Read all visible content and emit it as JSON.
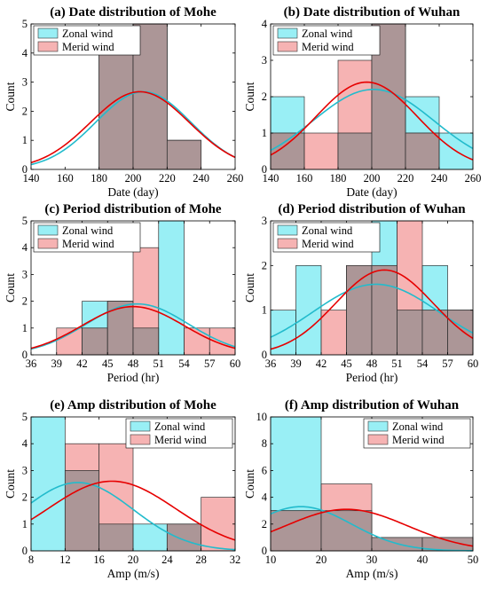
{
  "colors": {
    "zonal_fill": "#00D7E6",
    "merid_fill": "#F08080",
    "zonal_curve": "#22BBCC",
    "merid_curve": "#E60000",
    "overlap_fill": "#A08F8F"
  },
  "chart_data": [
    {
      "type": "bar",
      "title": "(a) Date distribution of Mohe",
      "xlabel": "Date (day)",
      "ylabel": "Count",
      "xlim": [
        140,
        260
      ],
      "ylim": [
        0,
        5
      ],
      "xticks": [
        "140",
        "160",
        "180",
        "200",
        "220",
        "240",
        "260"
      ],
      "yticks": [
        "0",
        "1",
        "2",
        "3",
        "4",
        "5"
      ],
      "bin_edges": [
        140,
        160,
        180,
        200,
        220,
        240,
        260
      ],
      "series": [
        {
          "name": "Zonal wind",
          "values": [
            0,
            0,
            4,
            5,
            1,
            0
          ]
        },
        {
          "name": "Merid wind",
          "values": [
            0,
            0,
            4,
            5,
            1,
            0
          ]
        }
      ],
      "fits": [
        {
          "series": "Zonal wind",
          "mean": 206,
          "peak": 2.67,
          "sigma": 28
        },
        {
          "series": "Merid wind",
          "mean": 204,
          "peak": 2.67,
          "sigma": 29
        }
      ],
      "legend": "top-left"
    },
    {
      "type": "bar",
      "title": "(b) Date distribution of Wuhan",
      "xlabel": "Date (day)",
      "ylabel": "Count",
      "xlim": [
        140,
        260
      ],
      "ylim": [
        0,
        4
      ],
      "xticks": [
        "140",
        "160",
        "180",
        "200",
        "220",
        "240",
        "260"
      ],
      "yticks": [
        "0",
        "1",
        "2",
        "3",
        "4"
      ],
      "bin_edges": [
        140,
        160,
        180,
        200,
        220,
        240,
        260
      ],
      "series": [
        {
          "name": "Zonal wind",
          "values": [
            2,
            0,
            1,
            4,
            2,
            1
          ]
        },
        {
          "name": "Merid wind",
          "values": [
            1,
            1,
            3,
            4,
            1,
            0
          ]
        }
      ],
      "fits": [
        {
          "series": "Zonal wind",
          "mean": 201,
          "peak": 2.2,
          "sigma": 36
        },
        {
          "series": "Merid wind",
          "mean": 197,
          "peak": 2.4,
          "sigma": 30
        }
      ],
      "legend": "top-left"
    },
    {
      "type": "bar",
      "title": "(c) Period distribution of Mohe",
      "xlabel": "Period (hr)",
      "ylabel": "Count",
      "xlim": [
        36,
        60
      ],
      "ylim": [
        0,
        5
      ],
      "xticks": [
        "36",
        "39",
        "42",
        "45",
        "48",
        "51",
        "54",
        "57",
        "60"
      ],
      "yticks": [
        "0",
        "1",
        "2",
        "3",
        "4",
        "5"
      ],
      "bin_edges": [
        36,
        39,
        42,
        45,
        48,
        51,
        54,
        57,
        60
      ],
      "series": [
        {
          "name": "Zonal wind",
          "values": [
            0,
            0,
            2,
            2,
            1,
            5,
            0,
            0
          ]
        },
        {
          "name": "Merid wind",
          "values": [
            0,
            1,
            1,
            2,
            4,
            0,
            1,
            1
          ]
        }
      ],
      "fits": [
        {
          "series": "Zonal wind",
          "mean": 48.5,
          "peak": 1.9,
          "sigma": 6
        },
        {
          "series": "Merid wind",
          "mean": 48,
          "peak": 1.8,
          "sigma": 6
        }
      ],
      "legend": "top-left"
    },
    {
      "type": "bar",
      "title": "(d) Period distribution of Wuhan",
      "xlabel": "Period (hr)",
      "ylabel": "Count",
      "xlim": [
        36,
        60
      ],
      "ylim": [
        0,
        3
      ],
      "xticks": [
        "36",
        "39",
        "42",
        "45",
        "48",
        "51",
        "54",
        "57",
        "60"
      ],
      "yticks": [
        "0",
        "1",
        "2",
        "3"
      ],
      "bin_edges": [
        36,
        39,
        42,
        45,
        48,
        51,
        54,
        57,
        60
      ],
      "series": [
        {
          "name": "Zonal wind",
          "values": [
            1,
            2,
            0,
            2,
            3,
            1,
            2,
            1
          ]
        },
        {
          "name": "Merid wind",
          "values": [
            0,
            0,
            1,
            2,
            2,
            3,
            1,
            1
          ]
        }
      ],
      "fits": [
        {
          "series": "Zonal wind",
          "mean": 48.5,
          "peak": 1.58,
          "sigma": 7.5
        },
        {
          "series": "Merid wind",
          "mean": 49.5,
          "peak": 1.9,
          "sigma": 5.8
        }
      ],
      "legend": "top-left"
    },
    {
      "type": "bar",
      "title": "(e) Amp distribution of Mohe",
      "xlabel": "Amp (m/s)",
      "ylabel": "Count",
      "xlim": [
        8,
        32
      ],
      "ylim": [
        0,
        5
      ],
      "xticks": [
        "8",
        "12",
        "16",
        "20",
        "24",
        "28",
        "32"
      ],
      "yticks": [
        "0",
        "1",
        "2",
        "3",
        "4",
        "5"
      ],
      "bin_edges": [
        8,
        12,
        16,
        20,
        24,
        28,
        32
      ],
      "series": [
        {
          "name": "Zonal wind",
          "values": [
            5,
            3,
            1,
            1,
            1,
            0
          ]
        },
        {
          "name": "Merid wind",
          "values": [
            0,
            4,
            4,
            0,
            1,
            2
          ]
        }
      ],
      "fits": [
        {
          "series": "Zonal wind",
          "mean": 13.5,
          "peak": 2.55,
          "sigma": 6.5
        },
        {
          "series": "Merid wind",
          "mean": 17.5,
          "peak": 2.6,
          "sigma": 7.5
        }
      ],
      "legend": "top-right"
    },
    {
      "type": "bar",
      "title": "(f) Amp distribution of Wuhan",
      "xlabel": "Amp (m/s)",
      "ylabel": "Count",
      "xlim": [
        10,
        50
      ],
      "ylim": [
        0,
        10
      ],
      "xticks": [
        "10",
        "20",
        "30",
        "40",
        "50"
      ],
      "yticks": [
        "0",
        "2",
        "4",
        "6",
        "8",
        "10"
      ],
      "bin_edges": [
        10,
        20,
        30,
        40,
        50
      ],
      "series": [
        {
          "name": "Zonal wind",
          "values": [
            10,
            3,
            1,
            1
          ]
        },
        {
          "name": "Merid wind",
          "values": [
            3,
            5,
            1,
            1
          ]
        }
      ],
      "fits": [
        {
          "series": "Zonal wind",
          "mean": 16,
          "peak": 3.3,
          "sigma": 10
        },
        {
          "series": "Merid wind",
          "mean": 25,
          "peak": 3.1,
          "sigma": 12
        }
      ],
      "legend": "top-right"
    }
  ]
}
